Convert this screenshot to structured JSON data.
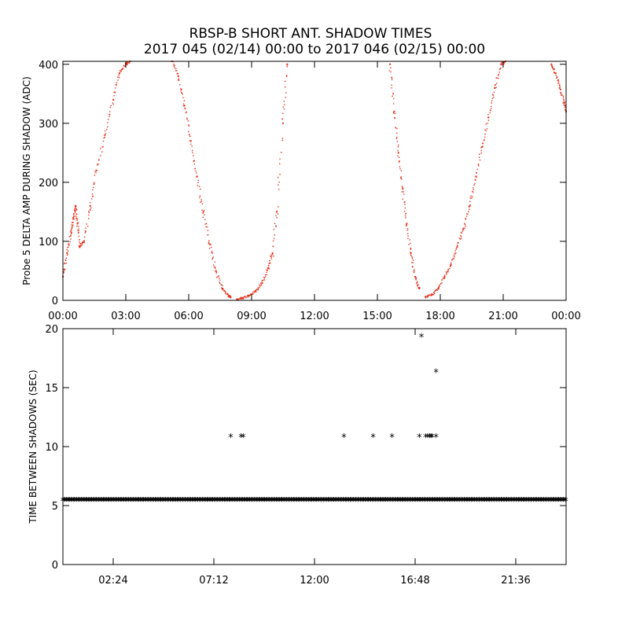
{
  "title_line1": "RBSP-B SHORT ANT. SHADOW TIMES",
  "title_line2": "2017 045 (02/14) 00:00 to 2017 046 (02/15) 00:00",
  "colors": {
    "series": "#e8321e",
    "axes": "#000000",
    "marker": "#000000"
  },
  "chart_data": [
    {
      "type": "scatter",
      "name": "delta-amp-panel",
      "ylabel": "Probe 5 DELTA AMP DURING SHADOW (ADC)",
      "xlabel": "",
      "xlim": [
        0,
        24
      ],
      "ylim": [
        0,
        405
      ],
      "xticks": [
        0,
        3,
        6,
        9,
        12,
        15,
        18,
        21,
        24
      ],
      "xtick_labels": [
        "00:00",
        "03:00",
        "06:00",
        "09:00",
        "12:00",
        "15:00",
        "18:00",
        "21:00",
        "00:00"
      ],
      "yticks": [
        0,
        100,
        200,
        300,
        400
      ],
      "ytick_labels": [
        "0",
        "100",
        "200",
        "300",
        "400"
      ],
      "series": [
        {
          "name": "delta amp",
          "color": "#e8321e",
          "x": [
            0.0,
            0.2,
            0.4,
            0.5,
            0.6,
            0.7,
            0.8,
            1.0,
            1.3,
            1.6,
            2.0,
            2.4,
            2.7,
            3.0,
            3.2
          ],
          "y": [
            40,
            80,
            115,
            140,
            160,
            130,
            90,
            100,
            160,
            220,
            280,
            340,
            385,
            400,
            405
          ]
        },
        {
          "name": "delta amp",
          "color": "#e8321e",
          "x": [
            5.2,
            5.5,
            5.8,
            6.1,
            6.4,
            6.7,
            7.0,
            7.3,
            7.6,
            7.9,
            8.0
          ],
          "y": [
            405,
            380,
            330,
            270,
            210,
            150,
            95,
            50,
            20,
            8,
            5
          ]
        },
        {
          "name": "delta amp",
          "color": "#e8321e",
          "x": [
            8.3,
            8.6,
            8.9,
            9.2,
            9.5,
            9.8,
            10.0,
            10.2,
            10.5,
            10.7
          ],
          "y": [
            2,
            4,
            8,
            15,
            30,
            55,
            80,
            150,
            300,
            400
          ]
        },
        {
          "name": "delta amp",
          "color": "#e8321e",
          "x": [
            15.6,
            15.8,
            16.0,
            16.2,
            16.4,
            16.6,
            16.8,
            17.0
          ],
          "y": [
            400,
            320,
            250,
            190,
            130,
            80,
            40,
            20
          ]
        },
        {
          "name": "delta amp",
          "color": "#e8321e",
          "x": [
            17.3,
            17.6,
            17.9,
            18.2,
            18.5,
            18.8,
            19.1,
            19.4,
            19.7,
            20.0,
            20.3,
            20.6,
            20.9,
            21.1
          ],
          "y": [
            5,
            10,
            20,
            40,
            60,
            90,
            120,
            160,
            210,
            260,
            310,
            360,
            400,
            405
          ]
        },
        {
          "name": "delta amp",
          "color": "#e8321e",
          "x": [
            23.3,
            23.5,
            23.7,
            23.9,
            24.0
          ],
          "y": [
            400,
            385,
            360,
            335,
            320
          ]
        }
      ]
    },
    {
      "type": "scatter",
      "name": "time-between-shadows-panel",
      "ylabel": "TIME BETWEEN SHADOWS (SEC)",
      "xlabel": "",
      "xlim": [
        0,
        24
      ],
      "ylim": [
        0,
        20
      ],
      "xticks": [
        2.4,
        7.2,
        12.0,
        16.8,
        21.6
      ],
      "xtick_labels": [
        "02:24",
        "07:12",
        "12:00",
        "16:48",
        "21:36"
      ],
      "yticks": [
        0,
        5,
        10,
        15,
        20
      ],
      "ytick_labels": [
        "0",
        "5",
        "10",
        "15",
        "20"
      ],
      "baseline": {
        "y": 5.4,
        "from": 0.0,
        "to": 24.0,
        "marker": "*"
      },
      "outliers": {
        "marker": "*",
        "x": [
          8.0,
          8.5,
          8.6,
          13.4,
          14.8,
          15.7,
          17.0,
          17.3,
          17.4,
          17.5,
          17.55,
          17.6,
          17.8,
          17.1,
          17.8
        ],
        "y": [
          10.8,
          10.8,
          10.8,
          10.8,
          10.8,
          10.8,
          10.8,
          10.8,
          10.8,
          10.8,
          10.8,
          10.8,
          10.8,
          19.3,
          16.3
        ]
      }
    }
  ]
}
